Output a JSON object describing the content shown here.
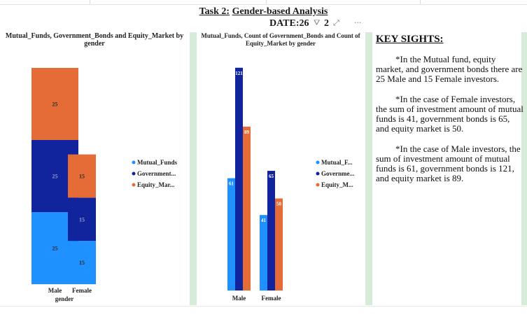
{
  "report": {
    "title_prefix": "Task 2:",
    "title_main": "Gender-based Analysis",
    "date_label": "DATE:26",
    "date_tail": "2",
    "more": "···"
  },
  "chart1": {
    "title": "Mutual_Funds, Government_Bonds and Equity_Market by gender",
    "xlabel": "gender",
    "legend": [
      "Mutual_Funds",
      "Government...",
      "Equity_Mar..."
    ]
  },
  "chart2": {
    "title": "Mutual_Funds, Count of Government_Bonds and Count of Equity_Market by gender",
    "legend": [
      "Mutual_F...",
      "Governme...",
      "Equity_M..."
    ]
  },
  "colors": {
    "mutual": "#1e90ff",
    "gov": "#12239e",
    "equity": "#e66c37"
  },
  "chart_data": [
    {
      "type": "bar",
      "stacked": true,
      "categories": [
        "Male",
        "Female"
      ],
      "series": [
        {
          "name": "Mutual_Funds",
          "values": [
            25,
            15
          ]
        },
        {
          "name": "Government...",
          "values": [
            25,
            15
          ]
        },
        {
          "name": "Equity_Mar...",
          "values": [
            25,
            15
          ]
        }
      ],
      "title": "Mutual_Funds, Government_Bonds and Equity_Market by gender",
      "xlabel": "gender",
      "legend": "right"
    },
    {
      "type": "bar",
      "stacked": false,
      "categories": [
        "Male",
        "Female"
      ],
      "series": [
        {
          "name": "Mutual_F...",
          "values": [
            61,
            41
          ]
        },
        {
          "name": "Governme...",
          "values": [
            121,
            65
          ]
        },
        {
          "name": "Equity_M...",
          "values": [
            89,
            50
          ]
        }
      ],
      "title": "Mutual_Funds, Count of Government_Bonds and Count of Equity_Market by gender",
      "legend": "right"
    }
  ],
  "insights": {
    "title": "KEY SIGHTS:",
    "paragraphs": [
      "*In the Mutual fund, equity market, and government bonds there are 25 Male and 15 Female investors.",
      "*In the case of Female investors, the sum  of investment amount of mutual funds is 41, government bonds is 65, and equity market is 50.",
      "*In the case of Male investors, the sum  of investment amount of mutual funds is 61, government bonds is 121, and equity market is 89."
    ]
  }
}
